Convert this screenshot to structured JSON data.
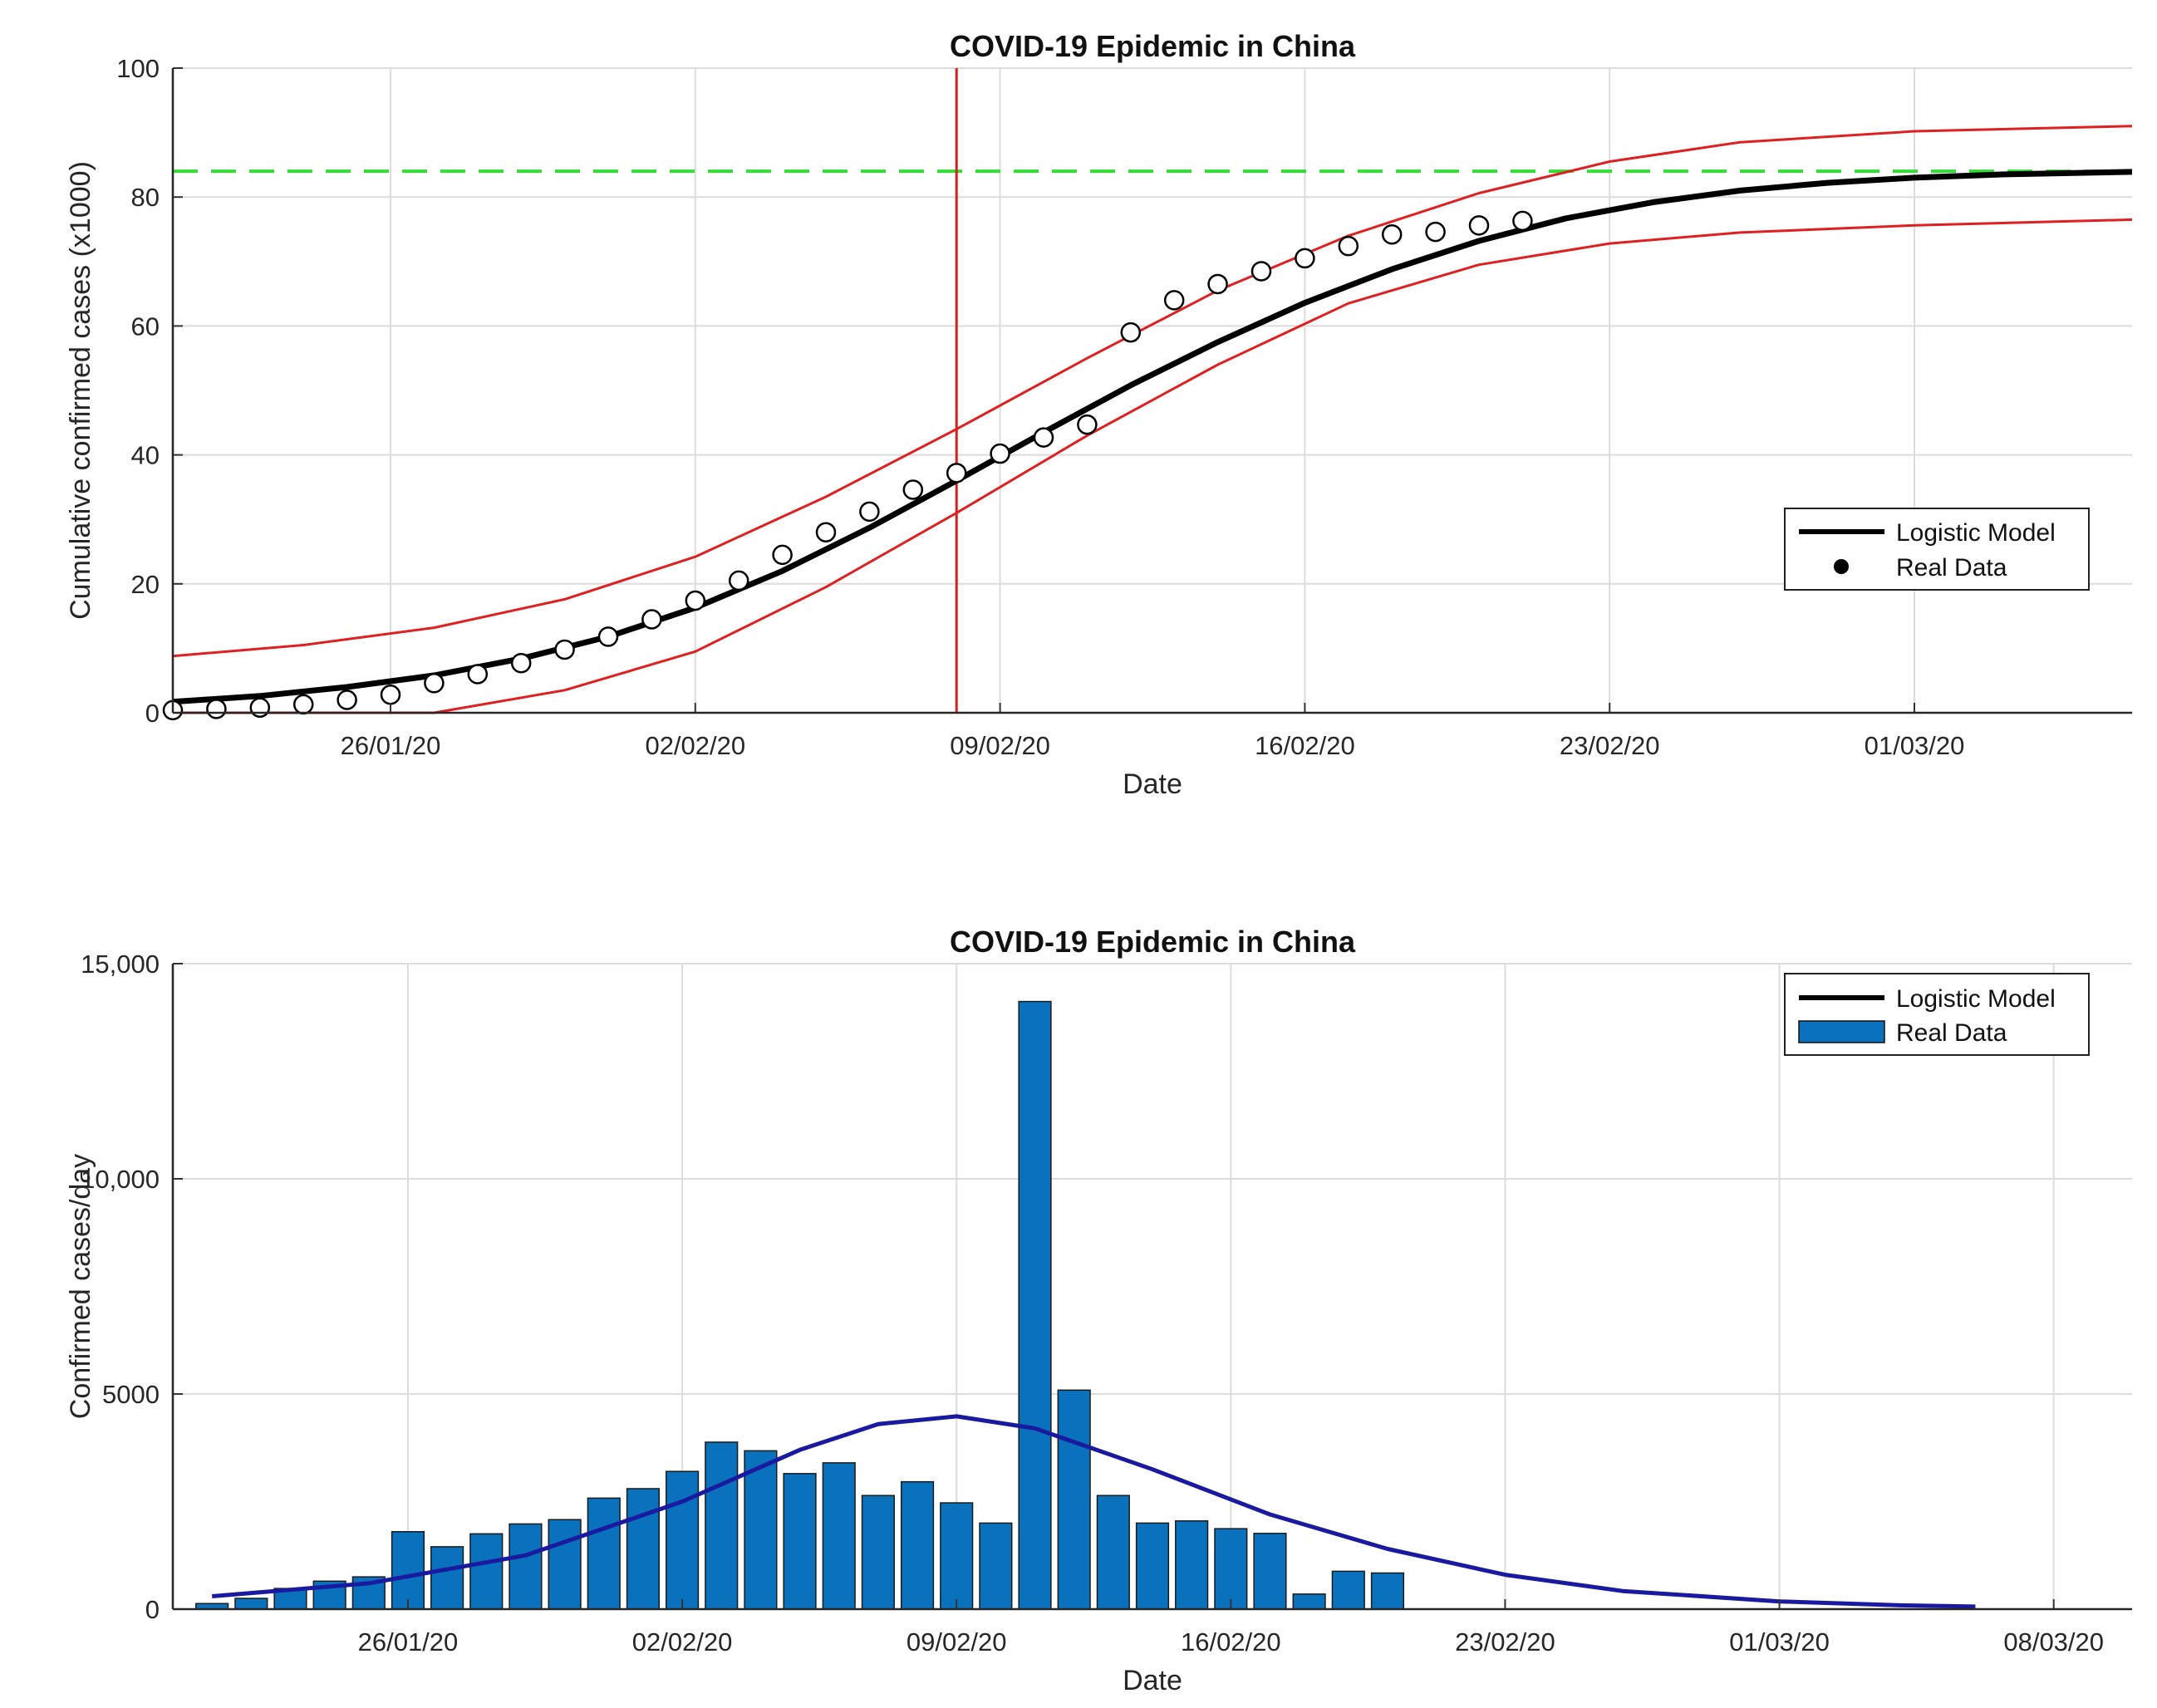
{
  "chart_data": [
    {
      "type": "line",
      "title": "COVID-19 Epidemic in China",
      "xlabel": "Date",
      "ylabel": "Cumulative confirmed cases (x1000)",
      "xlim": [
        "21/01/20",
        "06/03/20"
      ],
      "ylim": [
        0,
        100
      ],
      "yticks": [
        {
          "value": 0,
          "label": "0"
        },
        {
          "value": 20,
          "label": "20"
        },
        {
          "value": 40,
          "label": "40"
        },
        {
          "value": 60,
          "label": "60"
        },
        {
          "value": 80,
          "label": "80"
        },
        {
          "value": 100,
          "label": "100"
        }
      ],
      "xticks": [
        "26/01/20",
        "02/02/20",
        "09/02/20",
        "16/02/20",
        "23/02/20",
        "01/03/20"
      ],
      "grid": true,
      "legend": {
        "position": "center-right",
        "entries": [
          "Logistic Model",
          "Real Data"
        ]
      },
      "series": [
        {
          "name": "Logistic Model",
          "color": "#000000",
          "x": [
            "21/01/20",
            "23/01/20",
            "25/01/20",
            "27/01/20",
            "29/01/20",
            "31/01/20",
            "02/02/20",
            "04/02/20",
            "06/02/20",
            "08/02/20",
            "10/02/20",
            "12/02/20",
            "14/02/20",
            "16/02/20",
            "18/02/20",
            "20/02/20",
            "22/02/20",
            "24/02/20",
            "26/02/20",
            "28/02/20",
            "01/03/20",
            "03/03/20",
            "06/03/20"
          ],
          "y": [
            1.7,
            2.6,
            4.0,
            5.8,
            8.4,
            11.8,
            16.3,
            22.0,
            28.7,
            36.0,
            43.5,
            50.8,
            57.5,
            63.6,
            68.8,
            73.2,
            76.7,
            79.2,
            81.0,
            82.2,
            83.0,
            83.5,
            83.9
          ]
        },
        {
          "name": "Real Data",
          "color": "#000000",
          "marker": "open-circle",
          "x": [
            "21/01/20",
            "22/01/20",
            "23/01/20",
            "24/01/20",
            "25/01/20",
            "26/01/20",
            "27/01/20",
            "28/01/20",
            "29/01/20",
            "30/01/20",
            "31/01/20",
            "01/02/20",
            "02/02/20",
            "03/02/20",
            "04/02/20",
            "05/02/20",
            "06/02/20",
            "07/02/20",
            "08/02/20",
            "09/02/20",
            "10/02/20",
            "11/02/20",
            "12/02/20",
            "13/02/20",
            "14/02/20",
            "15/02/20",
            "16/02/20",
            "17/02/20",
            "18/02/20",
            "19/02/20",
            "20/02/20",
            "21/02/20"
          ],
          "y": [
            0.4,
            0.6,
            0.8,
            1.3,
            2.0,
            2.8,
            4.6,
            6.0,
            7.7,
            9.8,
            11.8,
            14.5,
            17.4,
            20.5,
            24.5,
            28.0,
            31.2,
            34.6,
            37.2,
            40.2,
            42.7,
            44.7,
            59.0,
            64.0,
            66.5,
            68.5,
            70.5,
            72.4,
            74.2,
            74.6,
            75.6,
            76.3
          ]
        },
        {
          "color": "#e02020",
          "x": [
            "21/01/20",
            "24/01/20",
            "27/01/20",
            "30/01/20",
            "02/02/20",
            "05/02/20",
            "08/02/20",
            "11/02/20",
            "14/02/20",
            "17/02/20",
            "20/02/20",
            "23/02/20",
            "26/02/20",
            "01/03/20",
            "06/03/20"
          ],
          "y": [
            8.8,
            10.5,
            13.2,
            17.6,
            24.2,
            33.5,
            44.0,
            55.0,
            65.5,
            74.0,
            80.6,
            85.5,
            88.5,
            90.2,
            91.0
          ]
        },
        {
          "color": "#e02020",
          "x": [
            "21/01/20",
            "23/01/20",
            "27/01/20",
            "30/01/20",
            "02/02/20",
            "05/02/20",
            "08/02/20",
            "11/02/20",
            "14/02/20",
            "17/02/20",
            "20/02/20",
            "23/02/20",
            "26/02/20",
            "01/03/20",
            "06/03/20"
          ],
          "y": [
            0,
            0,
            0,
            3.5,
            9.5,
            19.5,
            31.0,
            43.0,
            54.0,
            63.5,
            69.5,
            72.8,
            74.5,
            75.6,
            76.5
          ]
        }
      ],
      "reference_lines": [
        {
          "orientation": "horizontal",
          "value": 84,
          "color": "#33dd33",
          "style": "dashed"
        },
        {
          "orientation": "vertical",
          "value": "08/02/20",
          "color": "#d02020"
        }
      ]
    },
    {
      "type": "bar",
      "title": "COVID-19 Epidemic in China",
      "xlabel": "Date",
      "ylabel": "Confirmed cases/day",
      "xlim": [
        "20/01/20",
        "10/03/20"
      ],
      "ylim": [
        0,
        15000
      ],
      "yticks": [
        {
          "value": 0,
          "label": "0"
        },
        {
          "value": 5000,
          "label": "5000"
        },
        {
          "value": 10000,
          "label": "10,000"
        },
        {
          "value": 15000,
          "label": "15,000"
        }
      ],
      "xticks": [
        "26/01/20",
        "02/02/20",
        "09/02/20",
        "16/02/20",
        "23/02/20",
        "01/03/20",
        "08/03/20"
      ],
      "grid": true,
      "legend": {
        "position": "top-right",
        "entries": [
          "Logistic Model",
          "Real Data"
        ]
      },
      "bar_color": "#0a72bd",
      "categories": [
        "21/01/20",
        "22/01/20",
        "23/01/20",
        "24/01/20",
        "25/01/20",
        "26/01/20",
        "27/01/20",
        "28/01/20",
        "29/01/20",
        "30/01/20",
        "31/01/20",
        "01/02/20",
        "02/02/20",
        "03/02/20",
        "04/02/20",
        "05/02/20",
        "06/02/20",
        "07/02/20",
        "08/02/20",
        "09/02/20",
        "10/02/20",
        "11/02/20",
        "12/02/20",
        "13/02/20",
        "14/02/20",
        "15/02/20",
        "16/02/20",
        "17/02/20",
        "18/02/20",
        "19/02/20",
        "20/02/20",
        "21/02/20"
      ],
      "series": [
        {
          "name": "Real Data",
          "values": [
            130,
            250,
            480,
            650,
            750,
            1800,
            1450,
            1750,
            1980,
            2080,
            2580,
            2800,
            3200,
            3880,
            3680,
            3150,
            3400,
            2640,
            2960,
            2470,
            2000,
            14120,
            5090,
            2640,
            2000,
            2050,
            1870,
            1760,
            350,
            880,
            840,
            0
          ]
        },
        {
          "name": "Logistic Model",
          "color": "#1a1aa0",
          "x": [
            "21/01/20",
            "25/01/20",
            "29/01/20",
            "02/02/20",
            "05/02/20",
            "07/02/20",
            "09/02/20",
            "11/02/20",
            "14/02/20",
            "17/02/20",
            "20/02/20",
            "23/02/20",
            "26/02/20",
            "01/03/20",
            "04/03/20",
            "06/03/20"
          ],
          "y": [
            300,
            600,
            1250,
            2500,
            3700,
            4300,
            4480,
            4200,
            3250,
            2200,
            1400,
            800,
            420,
            180,
            90,
            60
          ]
        }
      ]
    }
  ]
}
